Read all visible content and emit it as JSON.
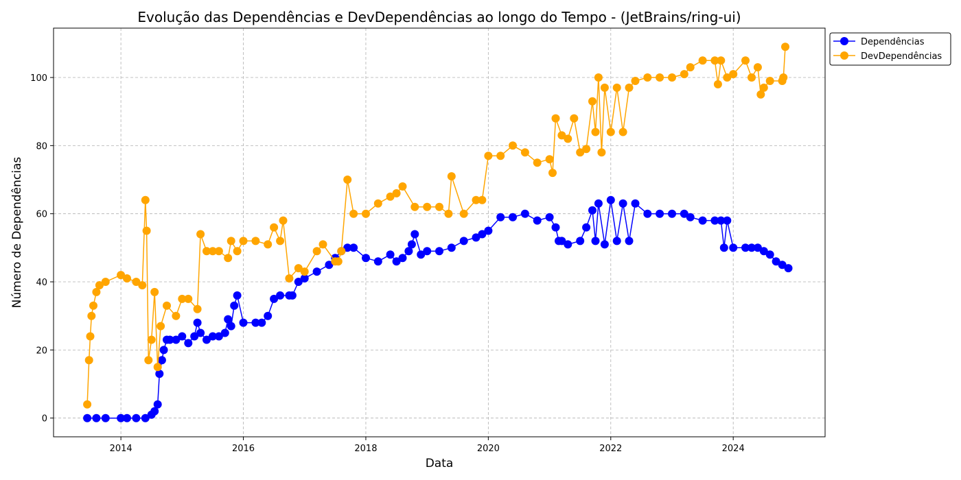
{
  "chart_data": {
    "type": "line",
    "title": "Evolução das Dependências e DevDependências ao longo do Tempo - (JetBrains/ring-ui)",
    "xlabel": "Data",
    "ylabel": "Número de Dependências",
    "xlim": [
      2012.9,
      2025.5
    ],
    "ylim": [
      -5.5,
      114.5
    ],
    "xticks": [
      2014,
      2016,
      2018,
      2020,
      2022,
      2024
    ],
    "xtick_labels": [
      "2014",
      "2016",
      "2018",
      "2020",
      "2022",
      "2024"
    ],
    "yticks": [
      0,
      20,
      40,
      60,
      80,
      100
    ],
    "ytick_labels": [
      "0",
      "20",
      "40",
      "60",
      "80",
      "100"
    ],
    "grid": true,
    "legend_position": "upper-right-outside",
    "series": [
      {
        "name": "Dependências",
        "color": "#0000ff",
        "x": [
          2013.45,
          2013.6,
          2013.75,
          2014.0,
          2014.1,
          2014.25,
          2014.4,
          2014.5,
          2014.55,
          2014.6,
          2014.63,
          2014.67,
          2014.7,
          2014.75,
          2014.8,
          2014.9,
          2015.0,
          2015.1,
          2015.2,
          2015.25,
          2015.3,
          2015.4,
          2015.5,
          2015.6,
          2015.7,
          2015.75,
          2015.8,
          2015.85,
          2015.9,
          2016.0,
          2016.2,
          2016.3,
          2016.4,
          2016.5,
          2016.6,
          2016.75,
          2016.8,
          2016.9,
          2017.0,
          2017.2,
          2017.4,
          2017.5,
          2017.6,
          2017.7,
          2017.8,
          2018.0,
          2018.2,
          2018.4,
          2018.5,
          2018.6,
          2018.7,
          2018.75,
          2018.8,
          2018.9,
          2019.0,
          2019.2,
          2019.4,
          2019.6,
          2019.8,
          2019.9,
          2020.0,
          2020.2,
          2020.4,
          2020.6,
          2020.8,
          2021.0,
          2021.1,
          2021.15,
          2021.2,
          2021.3,
          2021.5,
          2021.6,
          2021.7,
          2021.75,
          2021.8,
          2021.9,
          2022.0,
          2022.1,
          2022.2,
          2022.3,
          2022.4,
          2022.6,
          2022.8,
          2023.0,
          2023.2,
          2023.3,
          2023.5,
          2023.7,
          2023.8,
          2023.85,
          2023.9,
          2024.0,
          2024.2,
          2024.3,
          2024.4,
          2024.5,
          2024.6,
          2024.7,
          2024.8,
          2024.9
        ],
        "y": [
          0,
          0,
          0,
          0,
          0,
          0,
          0,
          1,
          2,
          4,
          13,
          17,
          20,
          23,
          23,
          23,
          24,
          22,
          24,
          28,
          25,
          23,
          24,
          24,
          25,
          29,
          27,
          33,
          36,
          28,
          28,
          28,
          30,
          35,
          36,
          36,
          36,
          40,
          41,
          43,
          45,
          47,
          49,
          50,
          50,
          47,
          46,
          48,
          46,
          47,
          49,
          51,
          54,
          48,
          49,
          49,
          50,
          52,
          53,
          54,
          55,
          59,
          59,
          60,
          58,
          59,
          56,
          52,
          52,
          51,
          52,
          56,
          61,
          52,
          63,
          51,
          64,
          52,
          63,
          52,
          63,
          60,
          60,
          60,
          60,
          59,
          58,
          58,
          58,
          50,
          58,
          50,
          50,
          50,
          50,
          49,
          48,
          46,
          45,
          44
        ]
      },
      {
        "name": "DevDependências",
        "color": "#ffa500",
        "x": [
          2013.45,
          2013.48,
          2013.5,
          2013.52,
          2013.55,
          2013.6,
          2013.65,
          2013.75,
          2014.0,
          2014.1,
          2014.25,
          2014.35,
          2014.4,
          2014.42,
          2014.45,
          2014.5,
          2014.55,
          2014.6,
          2014.65,
          2014.75,
          2014.9,
          2015.0,
          2015.1,
          2015.25,
          2015.3,
          2015.4,
          2015.5,
          2015.6,
          2015.75,
          2015.8,
          2015.9,
          2016.0,
          2016.2,
          2016.4,
          2016.5,
          2016.6,
          2016.65,
          2016.75,
          2016.9,
          2017.0,
          2017.2,
          2017.3,
          2017.5,
          2017.55,
          2017.6,
          2017.7,
          2017.8,
          2018.0,
          2018.2,
          2018.4,
          2018.5,
          2018.6,
          2018.8,
          2019.0,
          2019.2,
          2019.35,
          2019.4,
          2019.6,
          2019.8,
          2019.9,
          2020.0,
          2020.2,
          2020.4,
          2020.6,
          2020.8,
          2021.0,
          2021.05,
          2021.1,
          2021.2,
          2021.3,
          2021.4,
          2021.5,
          2021.6,
          2021.7,
          2021.75,
          2021.8,
          2021.85,
          2021.9,
          2022.0,
          2022.1,
          2022.2,
          2022.3,
          2022.4,
          2022.6,
          2022.8,
          2023.0,
          2023.2,
          2023.3,
          2023.5,
          2023.7,
          2023.75,
          2023.8,
          2023.9,
          2024.0,
          2024.2,
          2024.3,
          2024.4,
          2024.45,
          2024.5,
          2024.6,
          2024.8,
          2024.82,
          2024.85
        ],
        "y": [
          4,
          17,
          24,
          30,
          33,
          37,
          39,
          40,
          42,
          41,
          40,
          39,
          64,
          55,
          17,
          23,
          37,
          15,
          27,
          33,
          30,
          35,
          35,
          32,
          54,
          49,
          49,
          49,
          47,
          52,
          49,
          52,
          52,
          51,
          56,
          52,
          58,
          41,
          44,
          43,
          49,
          51,
          46,
          46,
          49,
          70,
          60,
          60,
          63,
          65,
          66,
          68,
          62,
          62,
          62,
          60,
          71,
          60,
          64,
          64,
          77,
          77,
          80,
          78,
          75,
          76,
          72,
          88,
          83,
          82,
          88,
          78,
          79,
          93,
          84,
          100,
          78,
          97,
          84,
          97,
          84,
          97,
          99,
          100,
          100,
          100,
          101,
          103,
          105,
          105,
          98,
          105,
          100,
          101,
          105,
          100,
          103,
          95,
          97,
          99,
          99,
          100,
          109
        ]
      }
    ]
  }
}
